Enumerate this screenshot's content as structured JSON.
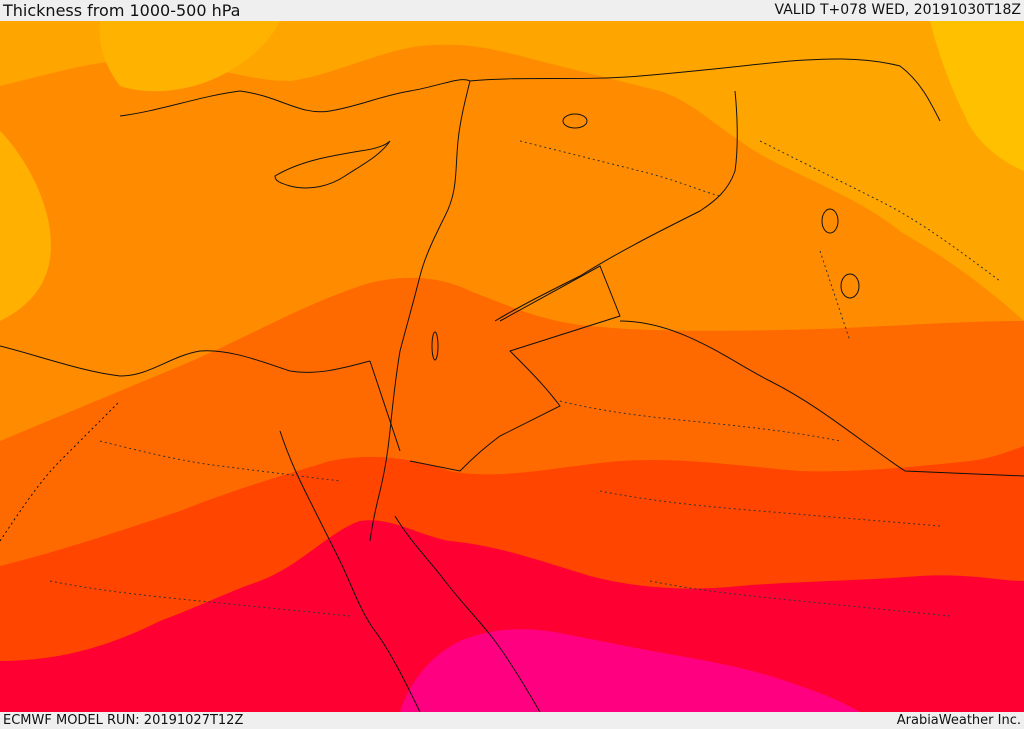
{
  "header": {
    "title": "Thickness from 1000-500 hPa",
    "valid": "VALID T+078 WED, 20191030T18Z"
  },
  "footer": {
    "model_run": "ECMWF MODEL RUN: 20191027T12Z",
    "credit": "ArabiaWeather Inc."
  },
  "map": {
    "fill_palette": [
      "#ffc000",
      "#ffa500",
      "#ff8c00",
      "#ff6a00",
      "#ff4500",
      "#ff0033",
      "#ff0080"
    ]
  }
}
